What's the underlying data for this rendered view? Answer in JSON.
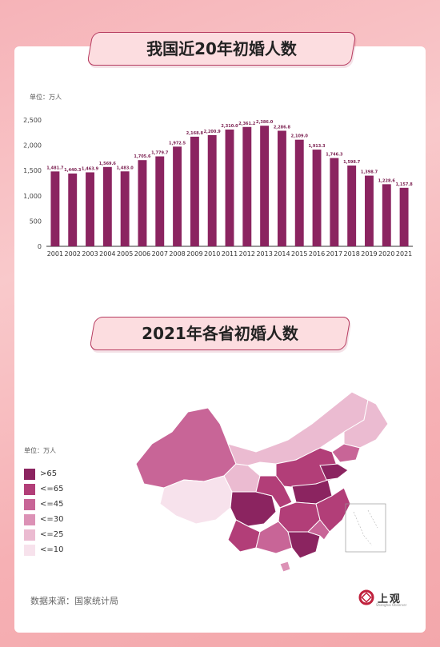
{
  "title1": "我国近20年初婚人数",
  "unit1": "单位：万人",
  "chart_data": {
    "type": "bar",
    "title": "我国近20年初婚人数",
    "ylabel": "单位：万人",
    "categories": [
      "2001",
      "2002",
      "2003",
      "2004",
      "2005",
      "2006",
      "2007",
      "2008",
      "2009",
      "2010",
      "2011",
      "2012",
      "2013",
      "2014",
      "2015",
      "2016",
      "2017",
      "2018",
      "2019",
      "2020",
      "2021"
    ],
    "values": [
      1481.7,
      1440.3,
      1463.9,
      1569.6,
      1483.0,
      1705.6,
      1779.7,
      1972.5,
      2168.8,
      2200.9,
      2310.0,
      2361.2,
      2386.0,
      2286.8,
      2109.0,
      1913.3,
      1746.3,
      1598.7,
      1398.7,
      1228.6,
      1157.8
    ],
    "labels": [
      "1,481.7",
      "1,440.3",
      "1,463.9",
      "1,569.6",
      "1,483.0",
      "1,705.6",
      "1,779.7",
      "1,972.5",
      "2,168.8",
      "2,200.9",
      "2,310.0",
      "2,361.2",
      "2,386.0",
      "2,286.8",
      "2,109.0",
      "1,913.3",
      "1,746.3",
      "1,598.7",
      "1,398.7",
      "1,228.6",
      "1,157.8"
    ],
    "ylim": [
      0,
      2500
    ],
    "yticks": [
      0,
      500,
      1000,
      1500,
      2000,
      2500
    ],
    "ytick_labels": [
      "0",
      "500",
      "1,000",
      "1,500",
      "2,000",
      "2,500"
    ],
    "grid": false,
    "color": "#8b2460"
  },
  "title2": "2021年各省初婚人数",
  "legend": {
    "unit": "单位：万人",
    "items": [
      {
        "label": ">65",
        "color": "#8b2460"
      },
      {
        "label": "<=65",
        "color": "#b23e78"
      },
      {
        "label": "<=45",
        "color": "#c86597"
      },
      {
        "label": "<=30",
        "color": "#dc92b6"
      },
      {
        "label": "<=25",
        "color": "#ebbbd1"
      },
      {
        "label": "<=10",
        "color": "#f7e2ec"
      }
    ]
  },
  "source": "数据来源：国家统计局",
  "brand": {
    "name": "上观",
    "sub": "Shanghai Observer"
  }
}
